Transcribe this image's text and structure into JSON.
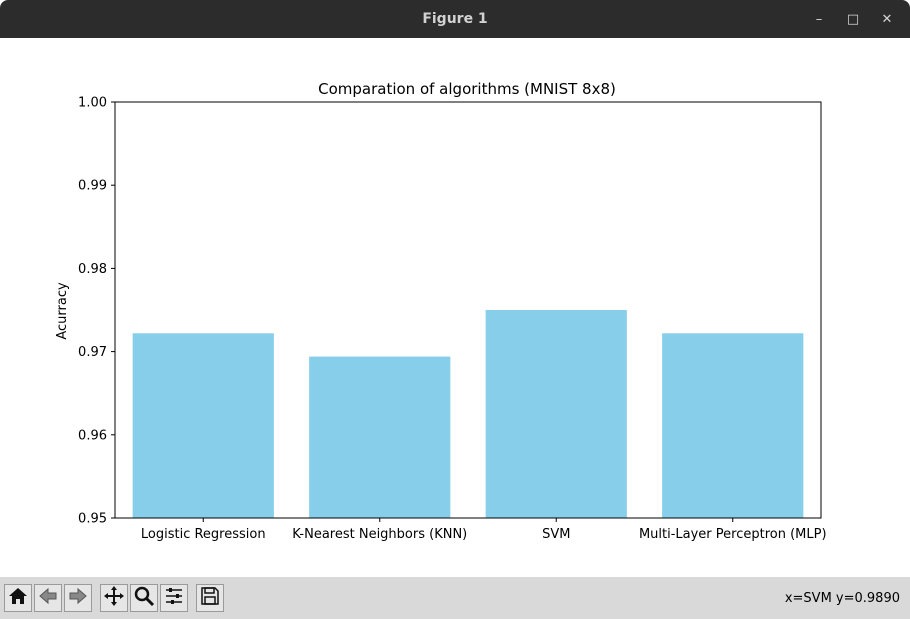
{
  "window": {
    "title": "Figure 1",
    "controls": {
      "minimize": "–",
      "maximize": "□",
      "close": "✕"
    }
  },
  "toolbar": {
    "buttons": [
      {
        "name": "home-icon"
      },
      {
        "name": "back-icon"
      },
      {
        "name": "forward-icon"
      },
      {
        "name": "pan-icon"
      },
      {
        "name": "zoom-icon"
      },
      {
        "name": "configure-subplots-icon"
      },
      {
        "name": "save-icon"
      }
    ],
    "coords": "x=SVM y=0.9890"
  },
  "chart_data": {
    "type": "bar",
    "title": "Comparation of algorithms (MNIST 8x8)",
    "xlabel": "",
    "ylabel": "Acurracy",
    "categories": [
      "Logistic Regression",
      "K-Nearest Neighbors (KNN)",
      "SVM",
      "Multi-Layer Perceptron (MLP)"
    ],
    "values": [
      0.9722,
      0.9694,
      0.975,
      0.9722
    ],
    "ylim": [
      0.95,
      1.0
    ],
    "yticks": [
      "0.95",
      "0.96",
      "0.97",
      "0.98",
      "0.99",
      "1.00"
    ],
    "bar_color": "#87ceeb",
    "grid": false
  }
}
